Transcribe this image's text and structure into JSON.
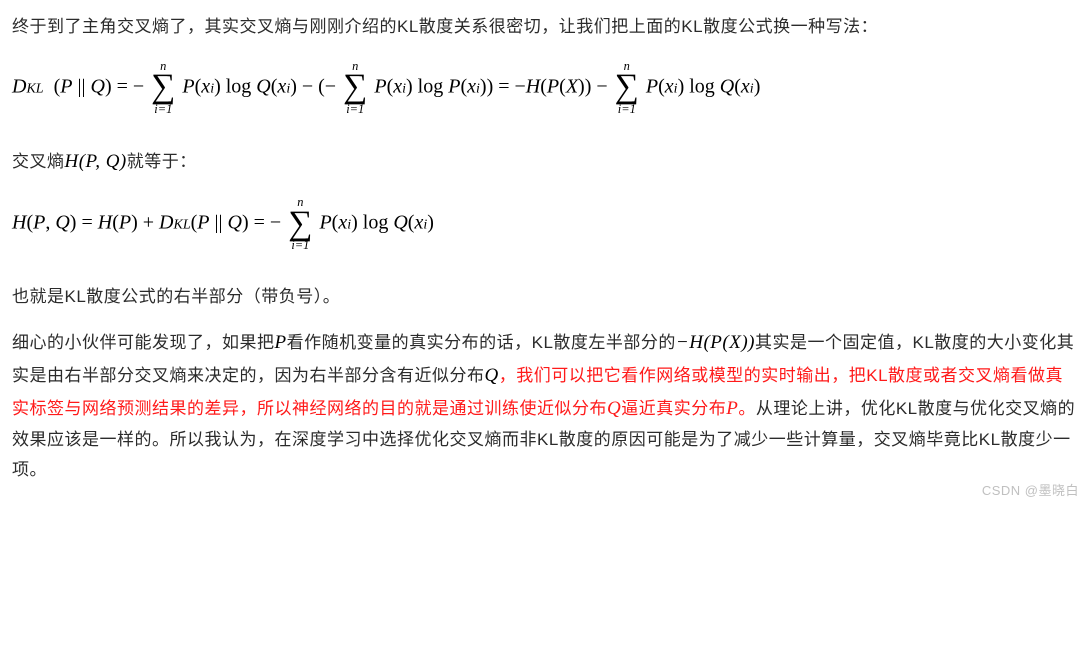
{
  "p1": "终于到了主角交叉熵了，其实交叉熵与刚刚介绍的KL散度关系很密切，让我们把上面的KL散度公式换一种写法：",
  "eq1": {
    "Dkl": "D",
    "kl_sub": "KL",
    "Pbar": "(P || Q) = − ",
    "sum_n": "n",
    "sum_lo": "i=1",
    "term1": "P(x",
    "xi_sub": "i",
    "term1b": ") log Q(x",
    "term1c": ") − (− ",
    "term2": "P(x",
    "term2b": ") log P(x",
    "term2c": ")) = −H(P(X)) − ",
    "term3": "P(x",
    "term3b": ") log Q(x",
    "term3c": ")"
  },
  "p2_a": "交叉熵",
  "p2_math": "H(P, Q)",
  "p2_b": "就等于：",
  "eq2": {
    "lhs": "H(P, Q) = H(P) + D",
    "kl_sub": "KL",
    "mid": "(P || Q) = − ",
    "sum_n": "n",
    "sum_lo": "i=1",
    "rhs": "P(x",
    "xi_sub": "i",
    "rhs2": ") log Q(x",
    "rhs3": ")"
  },
  "p3": "也就是KL散度公式的右半部分（带负号）。",
  "p4_a": "细心的小伙伴可能发现了，如果把",
  "p4_P": "P",
  "p4_b": "看作随机变量的真实分布的话，KL散度左半部分的",
  "p4_HPX": "−H(P(X))",
  "p4_c": "其实是一个固定值，KL散度的大小变化其实是由右半部分交叉熵来决定的，因为右半部分含有近似分布",
  "p4_Q": "Q",
  "p4_red1": "，我们可以把它看作网络或模型的实时输出，把KL散度或者交叉熵看做真实标签与网络预测结果的差异，所以神经网络的目的就是通过训练使近似分布",
  "p4_Qr": "Q",
  "p4_red2": "逼近真实分布",
  "p4_Pr": "P",
  "p4_red3": "。",
  "p4_d": "从理论上讲，优化KL散度与优化交叉熵的效果应该是一样的。所以我认为，在深度学习中选择优化交叉熵而非KL散度的原因可能是为了减少一些计算量，交叉熵毕竟比KL散度少一项。",
  "watermark": "CSDN @墨晓白"
}
